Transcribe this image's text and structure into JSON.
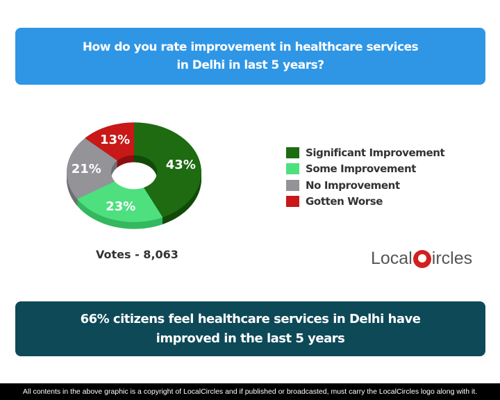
{
  "question": "How do you rate improvement in healthcare services in Delhi in last 5 years?",
  "question_lines": [
    "How do you rate improvement in healthcare services",
    "in Delhi in last 5 years?"
  ],
  "votes": "Votes - 8,063",
  "logo": {
    "left": "Local",
    "right": "ircles"
  },
  "conclusion_lines": [
    "66% citizens feel healthcare services in Delhi have",
    "improved in the last 5 years"
  ],
  "footer": "All contents in the above graphic is a copyright of LocalCircles and if published or broadcasted, must carry the LocalCircles logo along with it.",
  "chart_data": {
    "type": "pie",
    "title": "How do you rate improvement in healthcare services in Delhi in last 5 years?",
    "categories": [
      "Significant Improvement",
      "Some Improvement",
      "No Improvement",
      "Gotten Worse"
    ],
    "values": [
      43,
      23,
      21,
      13
    ],
    "labels": [
      "43%",
      "23%",
      "21%",
      "13%"
    ],
    "colors": [
      "#1e6b12",
      "#4ee07e",
      "#939398",
      "#c81818"
    ],
    "side_colors": [
      "#124a0a",
      "#35b85f",
      "#6e6e74",
      "#8e0f0f"
    ],
    "legend_position": "right"
  }
}
